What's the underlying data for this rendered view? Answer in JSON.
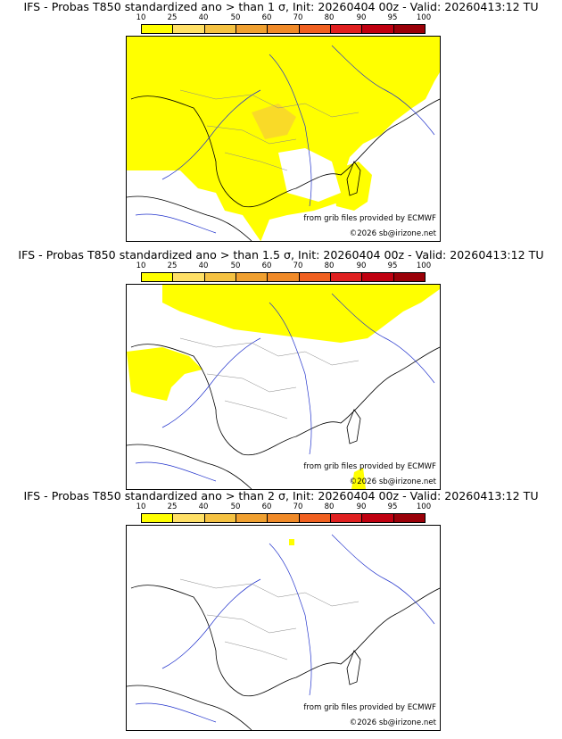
{
  "colorbar": {
    "ticks": [
      "10",
      "25",
      "40",
      "50",
      "60",
      "70",
      "80",
      "90",
      "95",
      "100"
    ],
    "colors": [
      "#ffff00",
      "#ffe066",
      "#f5c242",
      "#f0a030",
      "#f08a28",
      "#f06020",
      "#e02020",
      "#c00010",
      "#9a0008"
    ]
  },
  "panels": [
    {
      "title": "IFS - Probas T850  standardized ano > than 1 σ, Init: 20260404 00z - Valid: 20260413:12 TU",
      "credit_grib": "from grib files provided by ECMWF",
      "credit_site": "©2026 sb@irizone.net"
    },
    {
      "title": "IFS - Probas T850  standardized ano > than 1.5 σ, Init: 20260404 00z - Valid: 20260413:12 TU",
      "credit_grib": "from grib files provided by ECMWF",
      "credit_site": "©2026 sb@irizone.net"
    },
    {
      "title": "IFS - Probas T850  standardized ano > than 2 σ, Init: 20260404 00z - Valid: 20260413:12 TU",
      "credit_grib": "from grib files provided by ECMWF",
      "credit_site": "©2026 sb@irizone.net"
    }
  ],
  "colors": {
    "prob_low": "#ffff00",
    "prob_mid": "#f5c242",
    "coast": "#000000",
    "rivers": "#2233cc",
    "borders": "#aaaaaa"
  }
}
